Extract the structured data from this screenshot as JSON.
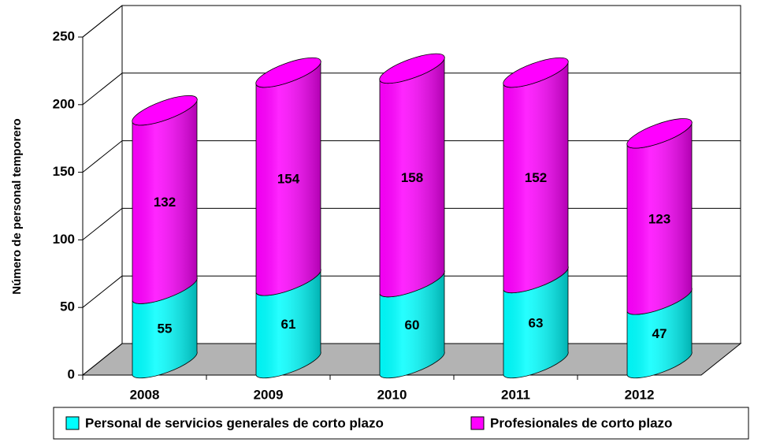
{
  "chart_data": {
    "type": "bar3d_stacked_cylinder",
    "y_label": "Número de personal temporero",
    "categories": [
      "2008",
      "2009",
      "2010",
      "2011",
      "2012"
    ],
    "series": [
      {
        "name": "Personal de servicios generales de corto plazo",
        "color": "#00ffff",
        "values": [
          55,
          61,
          60,
          63,
          47
        ]
      },
      {
        "name": "Profesionales de corto plazo",
        "color": "#ff00ff",
        "values": [
          132,
          154,
          158,
          152,
          123
        ]
      }
    ],
    "ylim": [
      0,
      250
    ],
    "yticks": [
      0,
      50,
      100,
      150,
      200,
      250
    ],
    "grid": true,
    "legend": "bottom"
  }
}
